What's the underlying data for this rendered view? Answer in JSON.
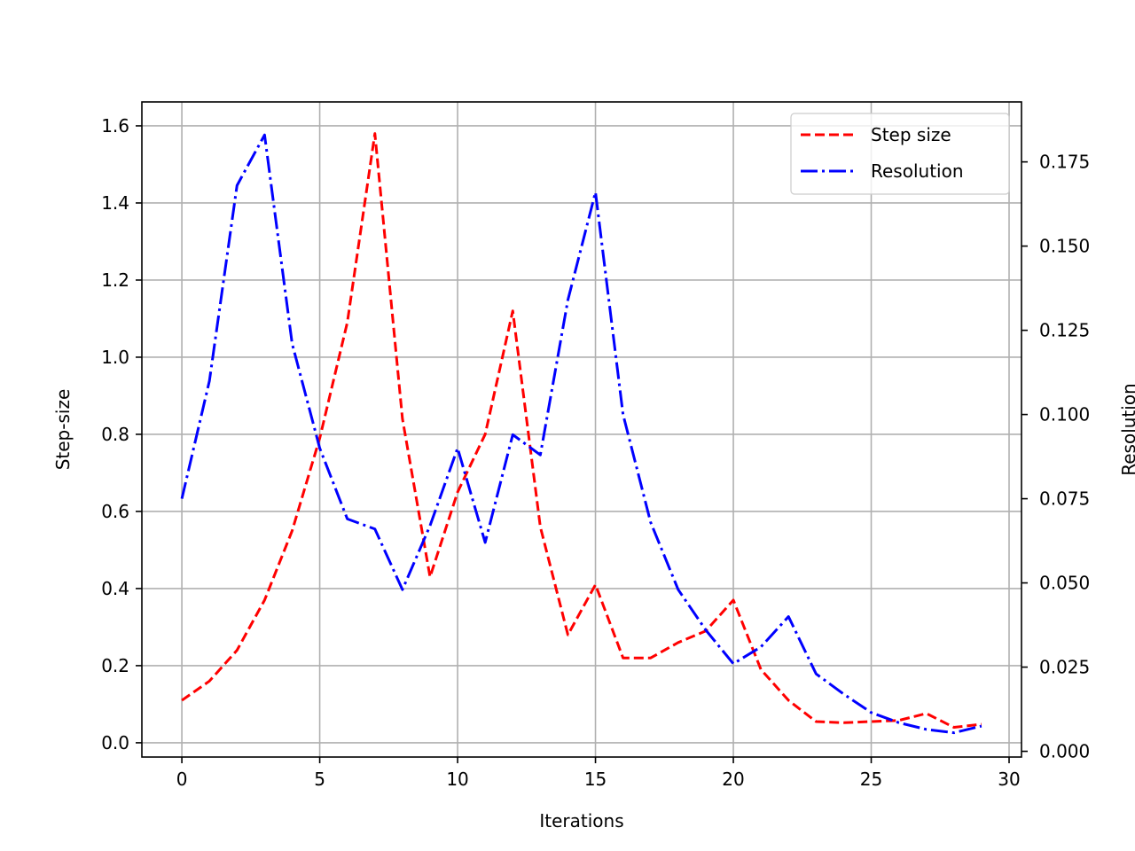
{
  "chart_data": {
    "type": "line",
    "x": [
      0,
      1,
      2,
      3,
      4,
      5,
      6,
      7,
      8,
      9,
      10,
      11,
      12,
      13,
      14,
      15,
      16,
      17,
      18,
      19,
      20,
      21,
      22,
      23,
      24,
      25,
      26,
      27,
      28,
      29
    ],
    "series": [
      {
        "name": "Step size",
        "axis": "left",
        "color": "#ff0000",
        "dash": "dashed",
        "values": [
          0.11,
          0.16,
          0.24,
          0.37,
          0.55,
          0.79,
          1.09,
          1.58,
          0.84,
          0.43,
          0.65,
          0.8,
          1.12,
          0.56,
          0.28,
          0.41,
          0.22,
          0.22,
          0.26,
          0.29,
          0.37,
          0.19,
          0.11,
          0.055,
          0.052,
          0.055,
          0.058,
          0.076,
          0.04,
          0.048
        ]
      },
      {
        "name": "Resolution",
        "axis": "right",
        "color": "#0000ff",
        "dash": "dashdot",
        "values": [
          0.075,
          0.11,
          0.168,
          0.183,
          0.121,
          0.09,
          0.069,
          0.066,
          0.048,
          0.067,
          0.09,
          0.062,
          0.094,
          0.088,
          0.134,
          0.166,
          0.1,
          0.068,
          0.048,
          0.036,
          0.026,
          0.031,
          0.04,
          0.023,
          0.017,
          0.0115,
          0.0085,
          0.0065,
          0.0055,
          0.0075
        ]
      }
    ],
    "xlabel": "Iterations",
    "ylabel": "Step-size",
    "ylabel_right": "Resolution",
    "xlim": [
      -1.45,
      30.45
    ],
    "ylim": [
      -0.037,
      1.662
    ],
    "ylim_right": [
      -0.0017,
      0.1928
    ],
    "xticks": [
      0,
      5,
      10,
      15,
      20,
      25,
      30
    ],
    "xtick_labels": [
      "0",
      "5",
      "10",
      "15",
      "20",
      "25",
      "30"
    ],
    "yticks": [
      0.0,
      0.2,
      0.4,
      0.6,
      0.8,
      1.0,
      1.2,
      1.4,
      1.6
    ],
    "ytick_labels": [
      "0.0",
      "0.2",
      "0.4",
      "0.6",
      "0.8",
      "1.0",
      "1.2",
      "1.4",
      "1.6"
    ],
    "yticks_right": [
      0.0,
      0.025,
      0.05,
      0.075,
      0.1,
      0.125,
      0.15,
      0.175
    ],
    "ytick_labels_right": [
      "0.000",
      "0.025",
      "0.050",
      "0.075",
      "0.100",
      "0.125",
      "0.150",
      "0.175"
    ],
    "grid": true,
    "legend_position": "top-right"
  }
}
